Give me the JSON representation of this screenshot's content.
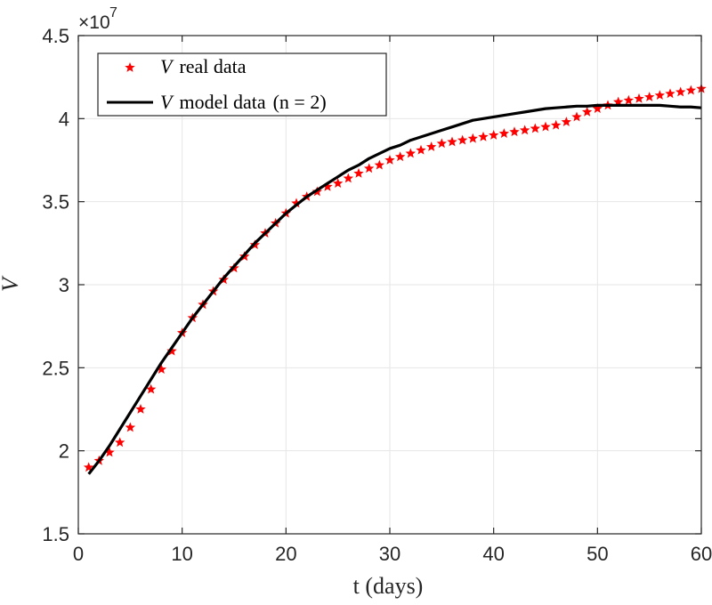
{
  "chart_data": {
    "type": "line",
    "xlabel": "t (days)",
    "ylabel": "V",
    "xlim": [
      0,
      60
    ],
    "ylim": [
      1.5,
      4.5
    ],
    "x_ticks": [
      "0",
      "10",
      "20",
      "30",
      "40",
      "50",
      "60"
    ],
    "y_ticks": [
      "1.5",
      "2",
      "2.5",
      "3",
      "3.5",
      "4",
      "4.5"
    ],
    "y_exponent": "×10^7",
    "y_exponent_base": "×10",
    "y_exponent_power": "7",
    "grid": true,
    "legend_position": "top-left",
    "series": [
      {
        "name": "V real data",
        "legend_math": "V",
        "legend_text": "real data",
        "style": "markers",
        "marker": "star",
        "color": "#ff0000",
        "x": [
          1,
          2,
          3,
          4,
          5,
          6,
          7,
          8,
          9,
          10,
          11,
          12,
          13,
          14,
          15,
          16,
          17,
          18,
          19,
          20,
          21,
          22,
          23,
          24,
          25,
          26,
          27,
          28,
          29,
          30,
          31,
          32,
          33,
          34,
          35,
          36,
          37,
          38,
          39,
          40,
          41,
          42,
          43,
          44,
          45,
          46,
          47,
          48,
          49,
          50,
          51,
          52,
          53,
          54,
          55,
          56,
          57,
          58,
          59,
          60
        ],
        "y": [
          1.9,
          1.94,
          1.99,
          2.05,
          2.14,
          2.25,
          2.37,
          2.49,
          2.6,
          2.71,
          2.8,
          2.88,
          2.96,
          3.03,
          3.1,
          3.17,
          3.24,
          3.31,
          3.37,
          3.43,
          3.49,
          3.53,
          3.56,
          3.59,
          3.61,
          3.64,
          3.67,
          3.7,
          3.72,
          3.75,
          3.77,
          3.79,
          3.81,
          3.83,
          3.85,
          3.86,
          3.87,
          3.88,
          3.89,
          3.9,
          3.91,
          3.92,
          3.93,
          3.94,
          3.95,
          3.96,
          3.98,
          4.01,
          4.04,
          4.06,
          4.08,
          4.1,
          4.11,
          4.12,
          4.13,
          4.14,
          4.15,
          4.16,
          4.17,
          4.18
        ]
      },
      {
        "name": "V model data (n = 2)",
        "legend_math": "V",
        "legend_text": "model data",
        "legend_paren": "(n = 2)",
        "style": "line",
        "color": "#000000",
        "x": [
          1,
          2,
          3,
          4,
          5,
          6,
          7,
          8,
          9,
          10,
          11,
          12,
          13,
          14,
          15,
          16,
          17,
          18,
          19,
          20,
          21,
          22,
          23,
          24,
          25,
          26,
          27,
          28,
          29,
          30,
          31,
          32,
          33,
          34,
          35,
          36,
          37,
          38,
          39,
          40,
          41,
          42,
          43,
          44,
          45,
          46,
          47,
          48,
          49,
          50,
          51,
          52,
          53,
          54,
          55,
          56,
          57,
          58,
          59,
          60
        ],
        "y": [
          1.86,
          1.94,
          2.03,
          2.13,
          2.23,
          2.33,
          2.43,
          2.53,
          2.62,
          2.71,
          2.8,
          2.88,
          2.96,
          3.04,
          3.11,
          3.18,
          3.25,
          3.31,
          3.37,
          3.43,
          3.48,
          3.53,
          3.57,
          3.61,
          3.65,
          3.69,
          3.72,
          3.76,
          3.79,
          3.82,
          3.84,
          3.87,
          3.89,
          3.91,
          3.93,
          3.95,
          3.97,
          3.99,
          4.0,
          4.01,
          4.02,
          4.03,
          4.04,
          4.05,
          4.06,
          4.065,
          4.07,
          4.075,
          4.075,
          4.08,
          4.08,
          4.08,
          4.08,
          4.08,
          4.08,
          4.08,
          4.075,
          4.07,
          4.07,
          4.065
        ]
      }
    ]
  }
}
